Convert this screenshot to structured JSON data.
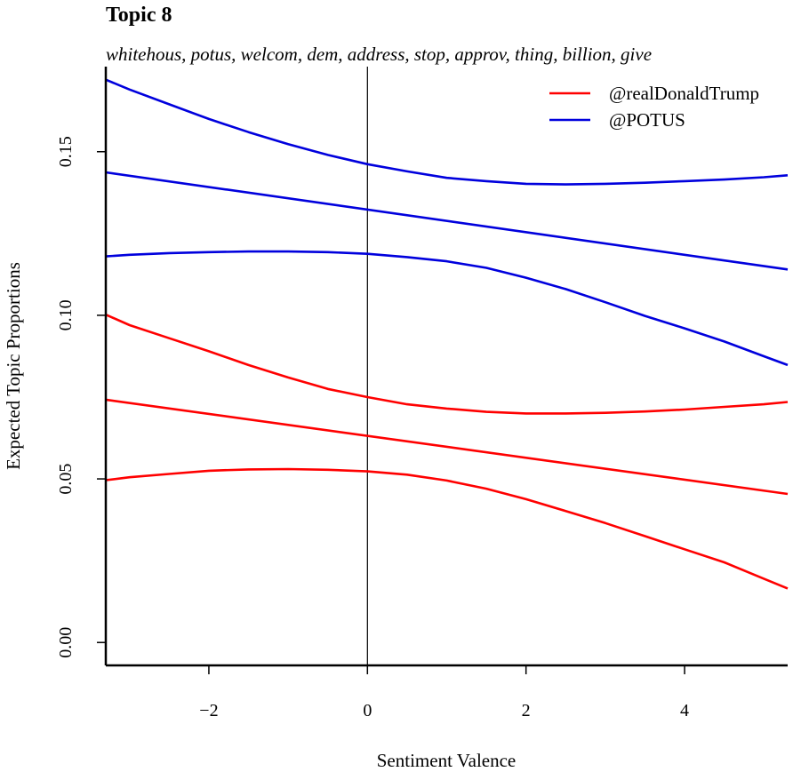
{
  "chart_data": {
    "type": "line",
    "title": "Topic 8",
    "subtitle": "whitehous, potus, welcom, dem, address, stop, approv, thing, billion, give",
    "xlabel": "Sentiment Valence",
    "ylabel": "Expected Topic Proportions",
    "xlim": [
      -3.3,
      5.3
    ],
    "ylim": [
      -0.007,
      0.176
    ],
    "x_ticks": [
      -2,
      0,
      2,
      4
    ],
    "x_tick_labels": [
      "−2",
      "0",
      "2",
      "4"
    ],
    "y_ticks": [
      0.0,
      0.05,
      0.1,
      0.15
    ],
    "y_tick_labels": [
      "0.00",
      "0.05",
      "0.10",
      "0.15"
    ],
    "reference_line_x": 0,
    "grid": false,
    "legend_position": "top-right",
    "series": [
      {
        "name": "@realDonaldTrump",
        "color": "#ff0000",
        "estimate": {
          "x": [
            -3.3,
            5.3
          ],
          "y": [
            0.0742,
            0.0454
          ]
        },
        "lower": {
          "x": [
            -3.3,
            -3.0,
            -2.5,
            -2.0,
            -1.5,
            -1.0,
            -0.5,
            0.0,
            0.5,
            1.0,
            1.5,
            2.0,
            2.5,
            3.0,
            3.5,
            4.0,
            4.5,
            5.0,
            5.3
          ],
          "y": [
            0.0496,
            0.0505,
            0.0515,
            0.0525,
            0.0529,
            0.053,
            0.0528,
            0.0523,
            0.0513,
            0.0495,
            0.047,
            0.0438,
            0.0402,
            0.0365,
            0.0325,
            0.0285,
            0.0245,
            0.0195,
            0.0165
          ]
        },
        "upper": {
          "x": [
            -3.3,
            -3.0,
            -2.5,
            -2.0,
            -1.5,
            -1.0,
            -0.5,
            0.0,
            0.5,
            1.0,
            1.5,
            2.0,
            2.5,
            3.0,
            3.5,
            4.0,
            4.5,
            5.0,
            5.3
          ],
          "y": [
            0.1002,
            0.097,
            0.093,
            0.089,
            0.0848,
            0.081,
            0.0775,
            0.075,
            0.0728,
            0.0715,
            0.0705,
            0.07,
            0.07,
            0.0702,
            0.0706,
            0.0712,
            0.072,
            0.0728,
            0.0735
          ]
        }
      },
      {
        "name": "@POTUS",
        "color": "#0000dd",
        "estimate": {
          "x": [
            -3.3,
            5.3
          ],
          "y": [
            0.1437,
            0.114
          ]
        },
        "lower": {
          "x": [
            -3.3,
            -3.0,
            -2.5,
            -2.0,
            -1.5,
            -1.0,
            -0.5,
            0.0,
            0.5,
            1.0,
            1.5,
            2.0,
            2.5,
            3.0,
            3.5,
            4.0,
            4.5,
            5.0,
            5.3
          ],
          "y": [
            0.118,
            0.1185,
            0.119,
            0.1193,
            0.1195,
            0.1195,
            0.1193,
            0.1188,
            0.1178,
            0.1165,
            0.1145,
            0.1115,
            0.108,
            0.104,
            0.0998,
            0.096,
            0.092,
            0.0875,
            0.0848
          ]
        },
        "upper": {
          "x": [
            -3.3,
            -3.0,
            -2.5,
            -2.0,
            -1.5,
            -1.0,
            -0.5,
            0.0,
            0.5,
            1.0,
            1.5,
            2.0,
            2.5,
            3.0,
            3.5,
            4.0,
            4.5,
            5.0,
            5.3
          ],
          "y": [
            0.172,
            0.169,
            0.1645,
            0.16,
            0.156,
            0.1523,
            0.149,
            0.1462,
            0.144,
            0.142,
            0.141,
            0.1402,
            0.14,
            0.1402,
            0.1405,
            0.141,
            0.1415,
            0.1422,
            0.1428
          ]
        }
      }
    ]
  }
}
